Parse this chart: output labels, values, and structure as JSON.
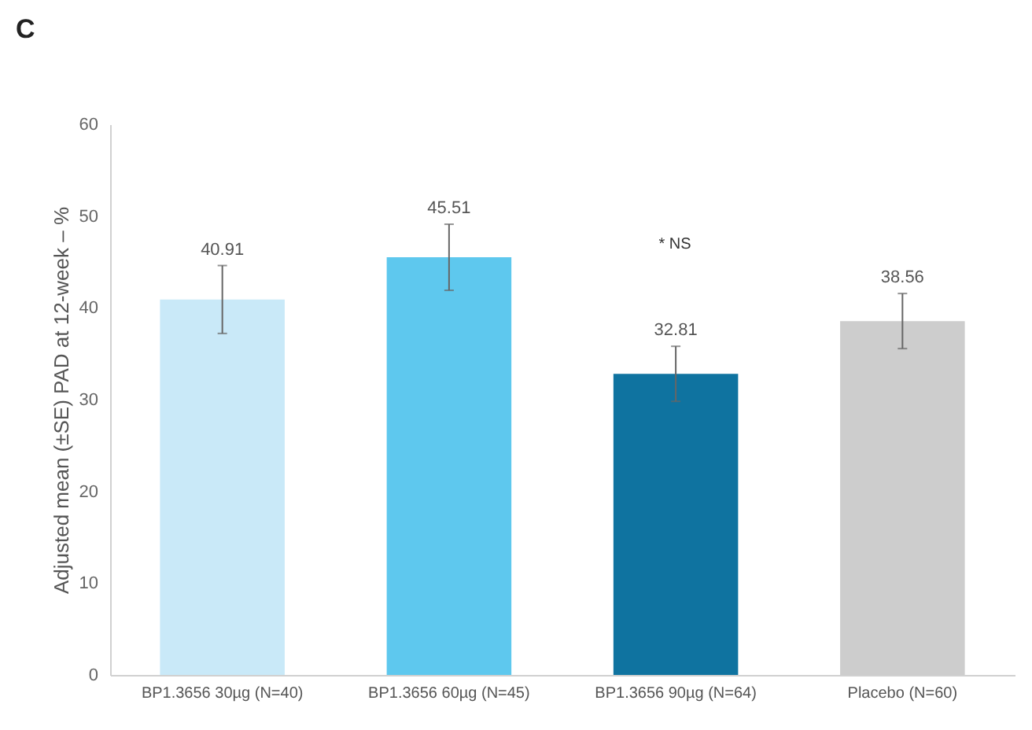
{
  "chart_data": {
    "type": "bar",
    "title": "C",
    "ylabel": "Adjusted mean (±SE) PAD at 12-week – %",
    "categories": [
      "BP1.3656 30µg (N=40)",
      "BP1.3656 60µg (N=45)",
      "BP1.3656 90µg (N=64)",
      "Placebo (N=60)"
    ],
    "values": [
      40.91,
      45.51,
      32.81,
      38.56
    ],
    "colors": [
      "#c9e9f8",
      "#5ec8ee",
      "#0f73a0",
      "#cdcdcd"
    ],
    "errors": [
      3.7,
      3.6,
      3.0,
      3.0
    ],
    "data_labels": true,
    "annotations": [
      "* NS"
    ],
    "ylim": [
      0,
      60
    ],
    "yticks": [
      0,
      10,
      20,
      30,
      40,
      50,
      60
    ],
    "grid": false,
    "legend": false
  }
}
